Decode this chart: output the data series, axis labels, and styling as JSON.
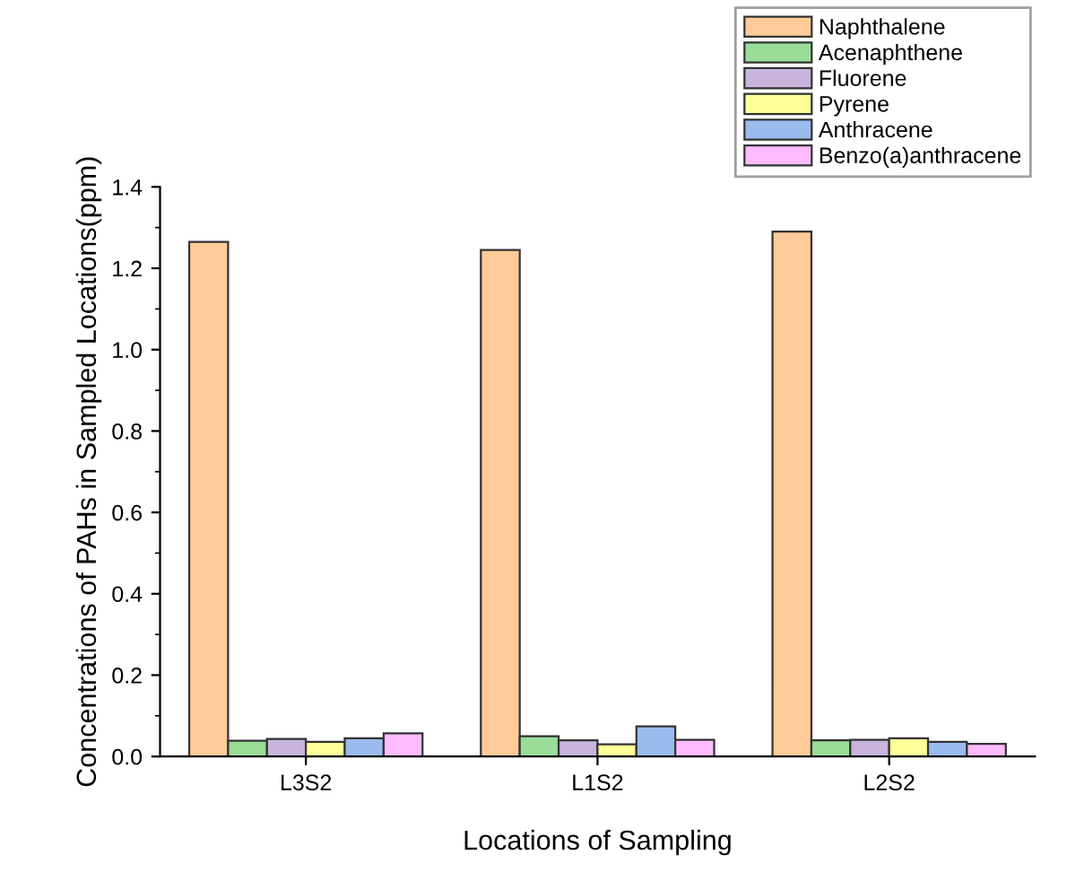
{
  "chart_data": {
    "type": "bar",
    "xlabel": "Locations of Sampling",
    "ylabel": "Concentrations of PAHs in Sampled Locations(ppm)",
    "categories": [
      "L3S2",
      "L1S2",
      "L2S2"
    ],
    "series": [
      {
        "name": "Naphthalene",
        "color": "#ffcc99",
        "values": [
          1.265,
          1.245,
          1.29
        ]
      },
      {
        "name": "Acenaphthene",
        "color": "#99dd99",
        "values": [
          0.039,
          0.05,
          0.04
        ]
      },
      {
        "name": "Fluorene",
        "color": "#c8b4dc",
        "values": [
          0.043,
          0.04,
          0.041
        ]
      },
      {
        "name": "Pyrene",
        "color": "#ffff99",
        "values": [
          0.036,
          0.03,
          0.045
        ]
      },
      {
        "name": "Anthracene",
        "color": "#99bbee",
        "values": [
          0.045,
          0.074,
          0.036
        ]
      },
      {
        "name": "Benzo(a)anthracene",
        "color": "#ffbbff",
        "values": [
          0.057,
          0.041,
          0.031
        ]
      }
    ],
    "ylim": [
      0,
      1.4
    ],
    "yticks": [
      {
        "value": 0,
        "label": "0.0"
      },
      0.2,
      0.4,
      0.6,
      0.8,
      {
        "value": 1,
        "label": "1.0"
      },
      1.2,
      1.4
    ],
    "grid": false,
    "legend": "top right"
  }
}
